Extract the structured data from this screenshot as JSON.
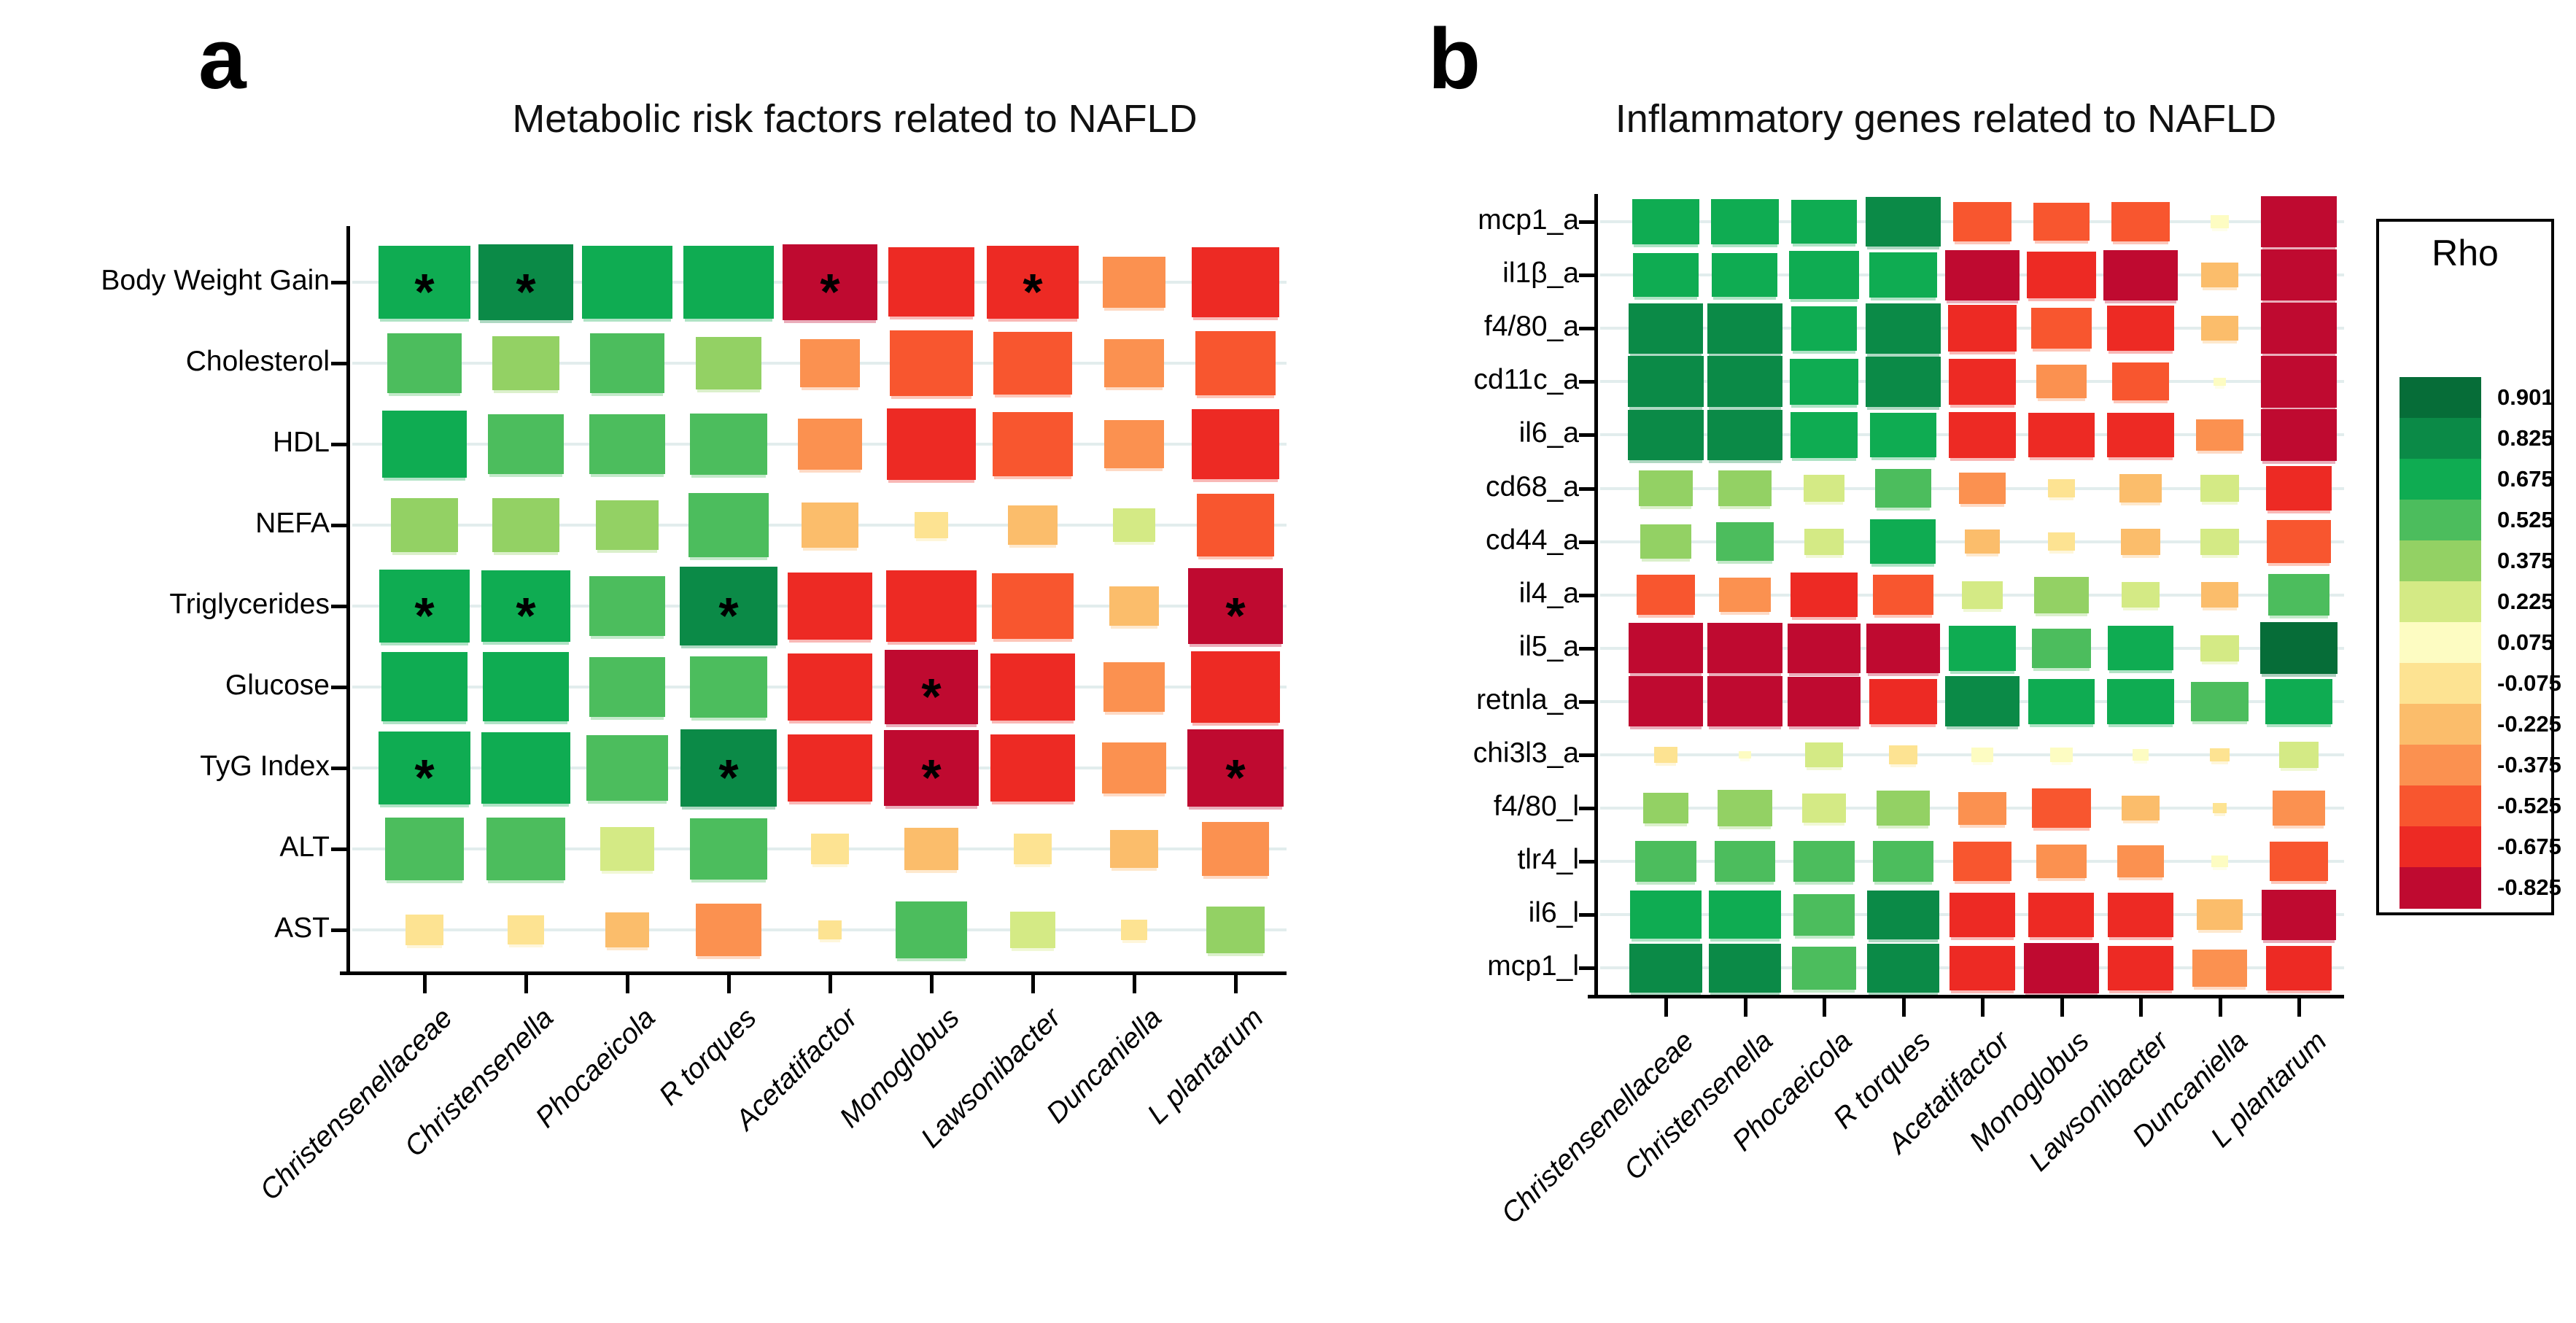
{
  "chart_data": [
    {
      "type": "heatmap",
      "panel_letter": "a",
      "title": "Metabolic risk factors related to NAFLD",
      "value_label": "Rho",
      "value_range": [
        -0.825,
        0.901
      ],
      "cell_encoding": "color and rectangle size encode Spearman rho; asterisk = significant",
      "rows": [
        "Body Weight Gain",
        "Cholesterol",
        "HDL",
        "NEFA",
        "Triglycerides",
        "Glucose",
        "TyG Index",
        "ALT",
        "AST"
      ],
      "columns": [
        "Christensenellaceae",
        "Christensenella",
        "Phocaeicola",
        "R torques",
        "Acetatifactor",
        "Monoglobus",
        "Lawsonibacter",
        "Duncaniella",
        "L plantarum"
      ],
      "values": [
        [
          0.74,
          0.8,
          0.72,
          0.72,
          -0.8,
          -0.66,
          -0.73,
          -0.35,
          -0.68
        ],
        [
          0.48,
          0.4,
          0.48,
          0.38,
          -0.32,
          -0.6,
          -0.55,
          -0.32,
          -0.57
        ],
        [
          0.62,
          0.5,
          0.5,
          0.52,
          -0.36,
          -0.7,
          -0.57,
          -0.32,
          -0.67
        ],
        [
          0.4,
          0.4,
          0.34,
          0.56,
          -0.28,
          -0.1,
          -0.22,
          0.16,
          -0.53
        ],
        [
          0.72,
          0.7,
          0.5,
          0.84,
          -0.62,
          -0.71,
          -0.58,
          -0.22,
          -0.8
        ],
        [
          0.66,
          0.66,
          0.5,
          0.52,
          -0.62,
          -0.77,
          -0.63,
          -0.33,
          -0.7
        ],
        [
          0.74,
          0.7,
          0.58,
          0.82,
          -0.62,
          -0.8,
          -0.62,
          -0.36,
          -0.82
        ],
        [
          0.55,
          0.54,
          0.26,
          0.52,
          -0.13,
          -0.25,
          -0.13,
          -0.2,
          -0.4
        ],
        [
          -0.13,
          -0.12,
          -0.17,
          -0.37,
          -0.05,
          0.45,
          0.18,
          -0.06,
          0.3
        ]
      ],
      "significance_stars": [
        [
          0,
          0
        ],
        [
          0,
          1
        ],
        [
          0,
          4
        ],
        [
          0,
          6
        ],
        [
          4,
          0
        ],
        [
          4,
          1
        ],
        [
          4,
          3
        ],
        [
          4,
          8
        ],
        [
          5,
          5
        ],
        [
          6,
          0
        ],
        [
          6,
          3
        ],
        [
          6,
          5
        ],
        [
          6,
          8
        ]
      ]
    },
    {
      "type": "heatmap",
      "panel_letter": "b",
      "title": "Inflammatory genes related to NAFLD",
      "value_label": "Rho",
      "value_range": [
        -0.825,
        0.901
      ],
      "cell_encoding": "color and rectangle size encode Spearman rho",
      "rows": [
        "mcp1_a",
        "il1β_a",
        "f4/80_a",
        "cd11c_a",
        "il6_a",
        "cd68_a",
        "cd44_a",
        "il4_a",
        "il5_a",
        "retnla_a",
        "chi3l3_a",
        "f4/80_l",
        "tlr4_l",
        "il6_l",
        "mcp1_l"
      ],
      "columns": [
        "Christensenellaceae",
        "Christensenella",
        "Phocaeicola",
        "R torques",
        "Acetatifactor",
        "Monoglobus",
        "Lawsonibacter",
        "Duncaniella",
        "L plantarum"
      ],
      "values": [
        [
          0.66,
          0.66,
          0.62,
          0.8,
          -0.5,
          -0.46,
          -0.5,
          0.05,
          -0.82
        ],
        [
          0.62,
          0.62,
          0.72,
          0.66,
          -0.8,
          -0.7,
          -0.8,
          -0.2,
          -0.82
        ],
        [
          0.8,
          0.8,
          0.62,
          0.8,
          -0.68,
          -0.52,
          -0.66,
          -0.2,
          -0.84
        ],
        [
          0.82,
          0.82,
          0.68,
          0.8,
          -0.66,
          -0.36,
          -0.46,
          0.02,
          -0.84
        ],
        [
          0.82,
          0.82,
          0.66,
          0.64,
          -0.66,
          -0.64,
          -0.64,
          -0.32,
          -0.84
        ],
        [
          0.42,
          0.4,
          0.24,
          0.46,
          -0.32,
          -0.1,
          -0.26,
          0.22,
          -0.62
        ],
        [
          0.38,
          0.48,
          0.22,
          0.62,
          -0.18,
          -0.1,
          -0.22,
          0.22,
          -0.6
        ],
        [
          -0.5,
          -0.38,
          -0.64,
          -0.52,
          0.24,
          0.42,
          0.2,
          -0.2,
          0.55
        ],
        [
          -0.8,
          -0.8,
          -0.78,
          -0.78,
          0.64,
          0.5,
          0.62,
          0.22,
          0.9
        ],
        [
          -0.8,
          -0.8,
          -0.78,
          -0.66,
          0.8,
          0.64,
          0.64,
          0.48,
          0.66
        ],
        [
          -0.08,
          0.02,
          0.2,
          -0.12,
          0.07,
          0.07,
          0.04,
          -0.06,
          0.22
        ],
        [
          0.3,
          0.42,
          0.28,
          0.4,
          -0.34,
          -0.5,
          -0.2,
          -0.03,
          -0.4
        ],
        [
          0.54,
          0.54,
          0.54,
          0.54,
          -0.5,
          -0.36,
          -0.32,
          0.04,
          -0.5
        ],
        [
          0.74,
          0.74,
          0.54,
          0.76,
          -0.62,
          -0.62,
          -0.62,
          -0.3,
          -0.8
        ],
        [
          0.76,
          0.76,
          0.58,
          0.76,
          -0.62,
          -0.8,
          -0.62,
          -0.44,
          -0.62
        ]
      ],
      "significance_stars": []
    }
  ],
  "legend": {
    "title": "Rho",
    "stops": [
      {
        "label": "0.901",
        "color": "#066d38"
      },
      {
        "label": "0.825",
        "color": "#0b8a47"
      },
      {
        "label": "0.675",
        "color": "#0fac52"
      },
      {
        "label": "0.525",
        "color": "#4cbd5d"
      },
      {
        "label": "0.375",
        "color": "#93d164"
      },
      {
        "label": "0.225",
        "color": "#d4ea85"
      },
      {
        "label": "0.075",
        "color": "#fdfcc2"
      },
      {
        "label": "-0.075",
        "color": "#fde392"
      },
      {
        "label": "-0.225",
        "color": "#fbbd6b"
      },
      {
        "label": "-0.375",
        "color": "#fb9150"
      },
      {
        "label": "-0.525",
        "color": "#f8562f"
      },
      {
        "label": "-0.675",
        "color": "#ed2a24"
      },
      {
        "label": "-0.825",
        "color": "#bf0a30"
      }
    ]
  }
}
